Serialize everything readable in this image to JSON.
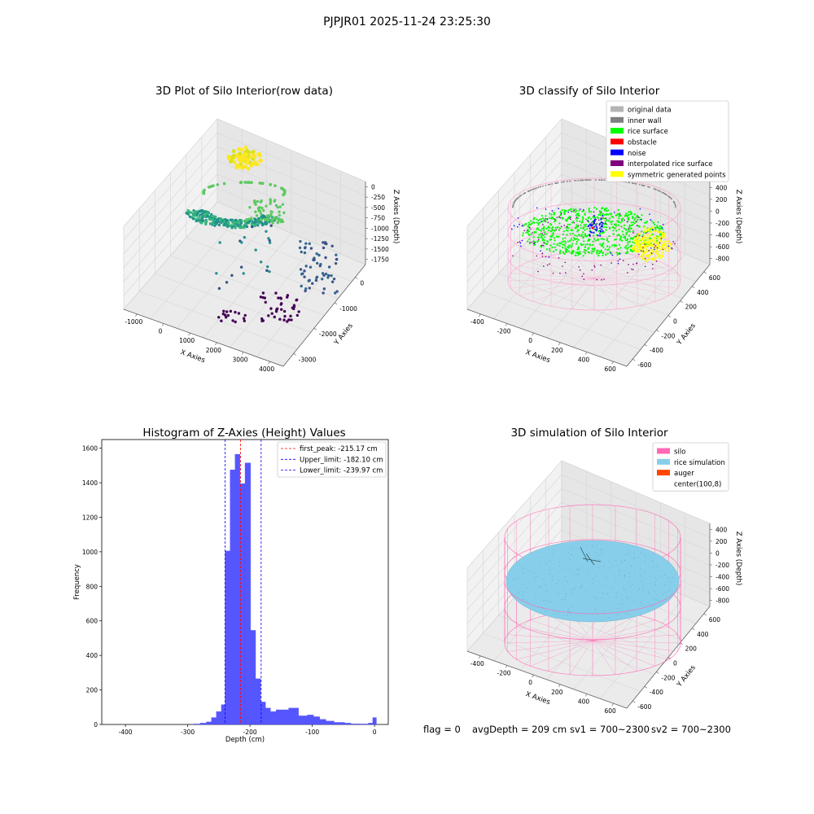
{
  "suptitle": "PJPJR01 2025-11-24 23:25:30",
  "status_line": {
    "flag": "flag = 0",
    "avg_depth": "avgDepth = 209 cm",
    "sv1": "sv1 = 700~2300",
    "sv2": "sv2 = 700~2300"
  },
  "chart_data": [
    {
      "type": "scatter",
      "title": "3D Plot of Silo Interior(row data)",
      "xlabel": "X Axies",
      "ylabel": "Y Axies",
      "zlabel": "Z Axies (Depth)",
      "x_ticks": [
        "-1000",
        "0",
        "1000",
        "2000",
        "3000",
        "4000"
      ],
      "y_ticks": [
        "0",
        "-1000",
        "-2000",
        "-3000"
      ],
      "z_ticks": [
        "0",
        "-250",
        "-500",
        "-750",
        "-1000",
        "-1250",
        "-1500",
        "-1750"
      ],
      "colormap": "viridis",
      "colors": [
        "#440154",
        "#3b528b",
        "#21918c",
        "#5ec962",
        "#fde725"
      ],
      "xlim": [
        -1400,
        4500
      ],
      "ylim": [
        -3500,
        600
      ],
      "zlim": [
        -1900,
        100
      ]
    },
    {
      "type": "scatter",
      "title": "3D classify of Silo Interior",
      "xlabel": "X Axies",
      "ylabel": "Y Axies",
      "zlabel": "Z Axies (Depth)",
      "x_ticks": [
        "-400",
        "-200",
        "0",
        "200",
        "400",
        "600"
      ],
      "y_ticks": [
        "600",
        "400",
        "200",
        "0",
        "-200",
        "-400",
        "-600"
      ],
      "z_ticks": [
        "400",
        "200",
        "0",
        "-200",
        "-400",
        "-600",
        "-800"
      ],
      "legend_position": "upper-right",
      "legend": [
        {
          "label": "original data",
          "color": "#b4b4b4"
        },
        {
          "label": "inner wall",
          "color": "#808080"
        },
        {
          "label": "rice surface",
          "color": "#00ff00"
        },
        {
          "label": "obstacle",
          "color": "#ff0000"
        },
        {
          "label": "noise",
          "color": "#0000ff"
        },
        {
          "label": "interpolated rice surface",
          "color": "#800080"
        },
        {
          "label": "symmetric generated points",
          "color": "#ffff00"
        }
      ],
      "xlim": [
        -550,
        750
      ],
      "ylim": [
        -700,
        700
      ],
      "zlim": [
        -900,
        450
      ]
    },
    {
      "type": "bar",
      "title": "Histogram of Z-Axies (Height) Values",
      "xlabel": "Depth (cm)",
      "ylabel": "Frequency",
      "bar_color": "#4d4dff",
      "x_ticks": [
        -400,
        -300,
        -200,
        -100,
        0
      ],
      "y_ticks": [
        0,
        200,
        400,
        600,
        800,
        1000,
        1200,
        1400,
        1600
      ],
      "xlim": [
        -438,
        22
      ],
      "ylim": [
        0,
        1650
      ],
      "bins": [
        {
          "x0": -290,
          "x1": -280,
          "count": 3
        },
        {
          "x0": -280,
          "x1": -270,
          "count": 8
        },
        {
          "x0": -270,
          "x1": -262,
          "count": 15
        },
        {
          "x0": -262,
          "x1": -254,
          "count": 40
        },
        {
          "x0": -254,
          "x1": -246,
          "count": 75
        },
        {
          "x0": -246,
          "x1": -240,
          "count": 115
        },
        {
          "x0": -240,
          "x1": -232,
          "count": 1005
        },
        {
          "x0": -232,
          "x1": -224,
          "count": 1475
        },
        {
          "x0": -224,
          "x1": -216,
          "count": 1565
        },
        {
          "x0": -216,
          "x1": -208,
          "count": 1395
        },
        {
          "x0": -208,
          "x1": -199,
          "count": 1515
        },
        {
          "x0": -199,
          "x1": -191,
          "count": 545
        },
        {
          "x0": -191,
          "x1": -183,
          "count": 265
        },
        {
          "x0": -183,
          "x1": -175,
          "count": 130
        },
        {
          "x0": -175,
          "x1": -167,
          "count": 95
        },
        {
          "x0": -167,
          "x1": -158,
          "count": 75
        },
        {
          "x0": -158,
          "x1": -148,
          "count": 85
        },
        {
          "x0": -148,
          "x1": -138,
          "count": 85
        },
        {
          "x0": -138,
          "x1": -122,
          "count": 95
        },
        {
          "x0": -122,
          "x1": -108,
          "count": 50
        },
        {
          "x0": -108,
          "x1": -98,
          "count": 55
        },
        {
          "x0": -98,
          "x1": -88,
          "count": 45
        },
        {
          "x0": -88,
          "x1": -78,
          "count": 30
        },
        {
          "x0": -78,
          "x1": -65,
          "count": 20
        },
        {
          "x0": -65,
          "x1": -48,
          "count": 12
        },
        {
          "x0": -48,
          "x1": -38,
          "count": 8
        },
        {
          "x0": -38,
          "x1": -25,
          "count": 4
        },
        {
          "x0": -25,
          "x1": -10,
          "count": 3
        },
        {
          "x0": -10,
          "x1": -3,
          "count": 8
        },
        {
          "x0": -3,
          "x1": 3,
          "count": 40
        }
      ],
      "vlines": [
        {
          "label": "first_peak: -215.17 cm",
          "value": -215.17,
          "color": "#ff0000"
        },
        {
          "label": "Upper_limit: -182.10 cm",
          "value": -182.1,
          "color": "#0000ff"
        },
        {
          "label": "Lower_limit: -239.97 cm",
          "value": -239.97,
          "color": "#0000ff"
        }
      ],
      "legend_position": "upper-right"
    },
    {
      "type": "scatter",
      "title": "3D simulation of Silo Interior",
      "xlabel": "X Axies",
      "ylabel": "Y Axies",
      "zlabel": "Z Axies (Depth)",
      "x_ticks": [
        "-400",
        "-200",
        "0",
        "200",
        "400",
        "600"
      ],
      "y_ticks": [
        "600",
        "400",
        "200",
        "0",
        "-200",
        "-400",
        "-600"
      ],
      "z_ticks": [
        "400",
        "200",
        "0",
        "-200",
        "-400",
        "-600",
        "-800"
      ],
      "legend_position": "upper-right",
      "legend": [
        {
          "label": "silo",
          "color": "#ff69b4"
        },
        {
          "label": "rice simulation",
          "color": "#87ceeb"
        },
        {
          "label": "auger",
          "color": "#ff4500"
        },
        {
          "label": "center(100,8)",
          "color": "#ffffff"
        }
      ],
      "xlim": [
        -550,
        750
      ],
      "ylim": [
        -700,
        700
      ],
      "zlim": [
        -900,
        450
      ]
    }
  ]
}
